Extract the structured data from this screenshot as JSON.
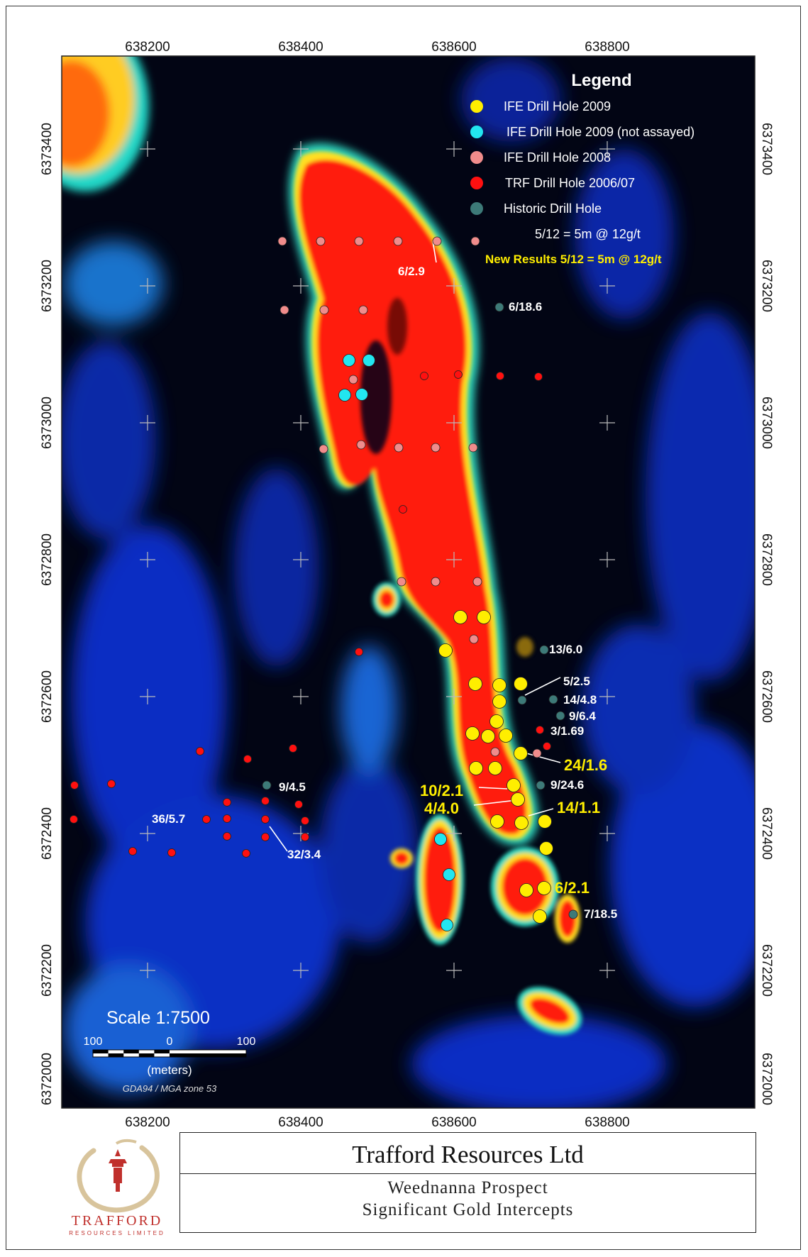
{
  "map": {
    "x_ticks": [
      "638200",
      "638400",
      "638600",
      "638800"
    ],
    "y_ticks": [
      "6373400",
      "6373200",
      "6373000",
      "6372800",
      "6372600",
      "6372400",
      "6372200",
      "6372000"
    ]
  },
  "legend": {
    "title": "Legend",
    "items": [
      {
        "label": "IFE Drill Hole 2009",
        "color": "#ffee00"
      },
      {
        "label": "IFE Drill Hole 2009 (not assayed)",
        "color": "#22e6f0"
      },
      {
        "label": "IFE Drill Hole 2008",
        "color": "#f08c8c"
      },
      {
        "label": "TRF Drill Hole 2006/07",
        "color": "#ff1010"
      },
      {
        "label": "Historic Drill Hole",
        "color": "#3d7a78"
      }
    ],
    "example_white": "5/12 = 5m @ 12g/t",
    "example_yellow": "New Results 5/12 = 5m @ 12g/t"
  },
  "intercepts": {
    "white": [
      "6/2.9",
      "6/18.6",
      "13/6.0",
      "5/2.5",
      "14/4.8",
      "9/6.4",
      "3/1.69",
      "9/24.6",
      "9/4.5",
      "36/5.7",
      "32/3.4",
      "7/18.5"
    ],
    "yellow": [
      "24/1.6",
      "10/2.1",
      "4/4.0",
      "14/1.1",
      "6/2.1"
    ]
  },
  "scale": {
    "title": "Scale 1:7500",
    "left_label": "100",
    "mid_label": "0",
    "right_label": "100",
    "units": "(meters)",
    "datum": "GDA94 / MGA zone 53"
  },
  "title_block": {
    "company": "Trafford Resources Ltd",
    "line1": "Weednanna Prospect",
    "line2": "Significant Gold Intercepts"
  },
  "logo": {
    "word": "TRAFFORD",
    "sub": "RESOURCES LIMITED"
  },
  "colors": {
    "anomaly": "#ff1c10",
    "background": "#020514",
    "low": "#0a33d6",
    "highlight_label": "#ffee00"
  }
}
